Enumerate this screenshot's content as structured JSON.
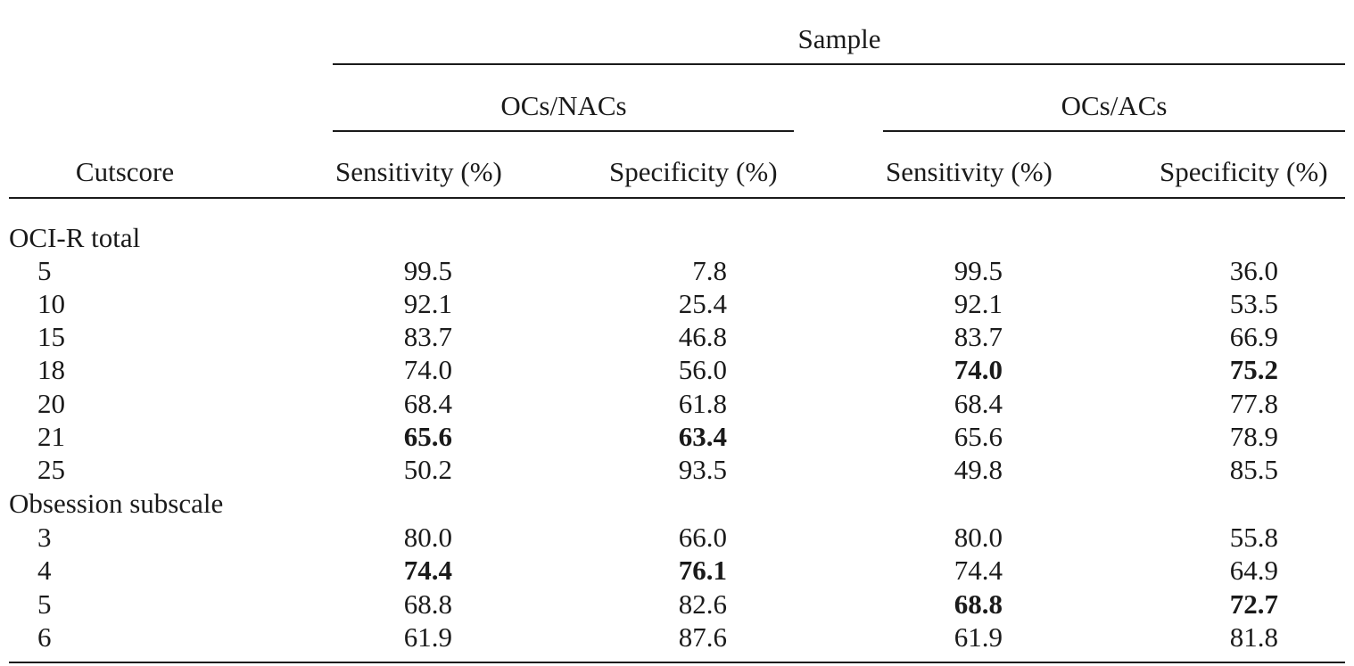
{
  "header": {
    "sample": "Sample",
    "group_nac": "OCs/NACs",
    "group_ac": "OCs/ACs",
    "cutscore": "Cutscore",
    "sensitivity": "Sensitivity (%)",
    "specificity": "Specificity (%)"
  },
  "sections": [
    {
      "title": "OCI-R total",
      "rows": [
        {
          "cut": "5",
          "nac_sens": "99.5",
          "nac_spec": "7.8",
          "ac_sens": "99.5",
          "ac_spec": "36.0"
        },
        {
          "cut": "10",
          "nac_sens": "92.1",
          "nac_spec": "25.4",
          "ac_sens": "92.1",
          "ac_spec": "53.5"
        },
        {
          "cut": "15",
          "nac_sens": "83.7",
          "nac_spec": "46.8",
          "ac_sens": "83.7",
          "ac_spec": "66.9"
        },
        {
          "cut": "18",
          "nac_sens": "74.0",
          "nac_spec": "56.0",
          "ac_sens": "74.0",
          "ac_spec": "75.2"
        },
        {
          "cut": "20",
          "nac_sens": "68.4",
          "nac_spec": "61.8",
          "ac_sens": "68.4",
          "ac_spec": "77.8"
        },
        {
          "cut": "21",
          "nac_sens": "65.6",
          "nac_spec": "63.4",
          "ac_sens": "65.6",
          "ac_spec": "78.9"
        },
        {
          "cut": "25",
          "nac_sens": "50.2",
          "nac_spec": "93.5",
          "ac_sens": "49.8",
          "ac_spec": "85.5"
        }
      ]
    },
    {
      "title": "Obsession subscale",
      "rows": [
        {
          "cut": "3",
          "nac_sens": "80.0",
          "nac_spec": "66.0",
          "ac_sens": "80.0",
          "ac_spec": "55.8"
        },
        {
          "cut": "4",
          "nac_sens": "74.4",
          "nac_spec": "76.1",
          "ac_sens": "74.4",
          "ac_spec": "64.9"
        },
        {
          "cut": "5",
          "nac_sens": "68.8",
          "nac_spec": "82.6",
          "ac_sens": "68.8",
          "ac_spec": "72.7"
        },
        {
          "cut": "6",
          "nac_sens": "61.9",
          "nac_spec": "87.6",
          "ac_sens": "61.9",
          "ac_spec": "81.8"
        }
      ]
    }
  ]
}
